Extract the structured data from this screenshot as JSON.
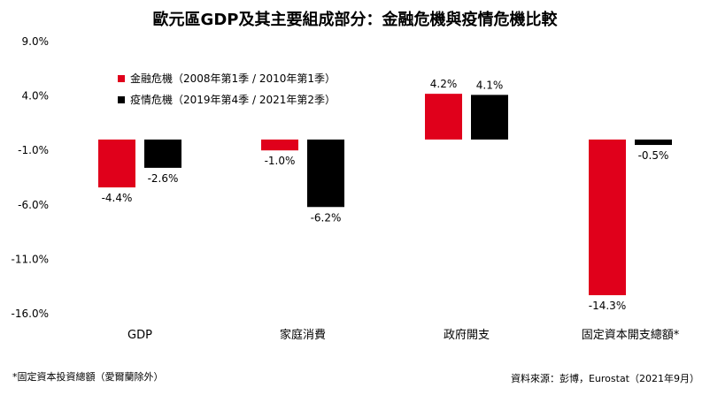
{
  "title": "歐元區GDP及其主要組成部分：金融危機與疫情危機比較",
  "footnote": "*固定資本投資總額（愛爾蘭除外）",
  "source": "資料來源：彭博，Eurostat（2021年9月）",
  "chart_data": {
    "type": "bar",
    "title": "歐元區GDP及其主要組成部分：金融危機與疫情危機比較",
    "categories": [
      "GDP",
      "家庭消費",
      "政府開支",
      "固定資本開支總額*"
    ],
    "series": [
      {
        "name": "金融危機（2008年第1季 / 2010年第1季）",
        "color": "#e0001b",
        "values": [
          -4.4,
          -1.0,
          4.2,
          -14.3
        ]
      },
      {
        "name": "疫情危機（2019年第4季 / 2021年第2季）",
        "color": "#000000",
        "values": [
          -2.6,
          -6.2,
          4.1,
          -0.5
        ]
      }
    ],
    "data_labels": [
      [
        "-4.4%",
        "-1.0%",
        "4.2%",
        "-14.3%"
      ],
      [
        "-2.6%",
        "-6.2%",
        "4.1%",
        "-0.5%"
      ]
    ],
    "yticks": [
      9.0,
      4.0,
      -1.0,
      -6.0,
      -11.0,
      -16.0
    ],
    "ytick_labels": [
      "9.0%",
      "4.0%",
      "-1.0%",
      "-6.0%",
      "-11.0%",
      "-16.0%"
    ],
    "ylim": [
      -16.0,
      9.0
    ],
    "grid": false,
    "legend_position": "top-left"
  }
}
